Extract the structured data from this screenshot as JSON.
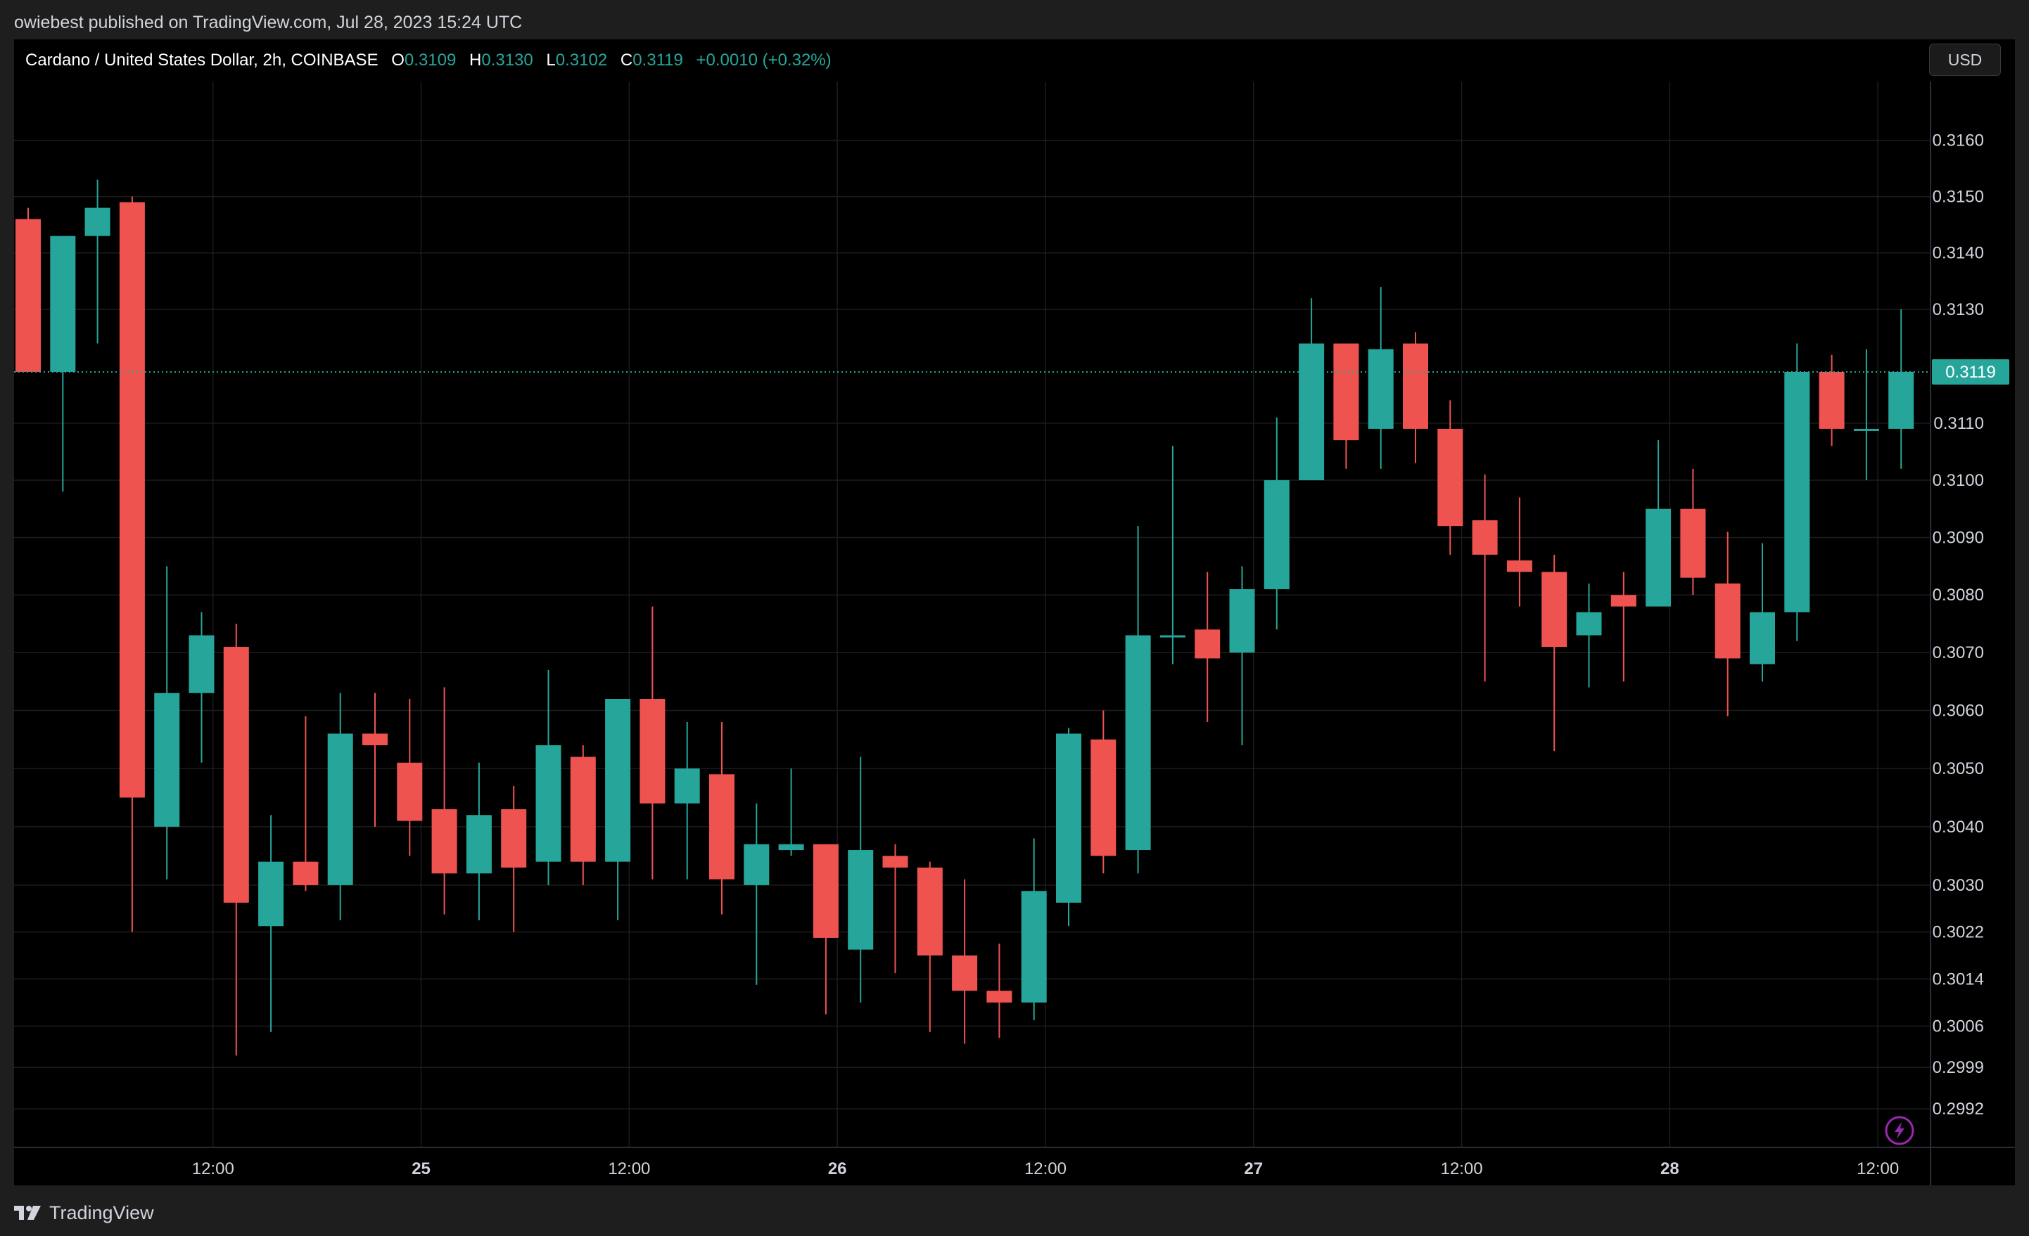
{
  "header": {
    "published_text": "owiebest published on TradingView.com, Jul 28, 2023 15:24 UTC"
  },
  "legend": {
    "symbol": "Cardano / United States Dollar, 2h, COINBASE",
    "o_label": "O",
    "o_value": "0.3109",
    "h_label": "H",
    "h_value": "0.3130",
    "l_label": "L",
    "l_value": "0.3102",
    "c_label": "C",
    "c_value": "0.3119",
    "change": "+0.0010 (+0.32%)"
  },
  "currency_button": "USD",
  "footer": {
    "brand": "TradingView"
  },
  "colors": {
    "up": "#26a69a",
    "down": "#ef5350",
    "background": "#000000",
    "grid": "#1c1c1c",
    "axis_text": "#d1d4dc"
  },
  "chart_data": {
    "type": "candlestick",
    "interval": "2h",
    "y_axis_ticks": [
      "0.3160",
      "0.3150",
      "0.3140",
      "0.3130",
      "0.3110",
      "0.3100",
      "0.3090",
      "0.3080",
      "0.3070",
      "0.3060",
      "0.3050",
      "0.3040",
      "0.3030",
      "0.3022",
      "0.3014",
      "0.3006",
      "0.2999",
      "0.2992"
    ],
    "y_scale": "log",
    "ylim": [
      0.29855,
      0.31705
    ],
    "x_axis_ticks": [
      {
        "label": "12:00",
        "index": 5.33,
        "bold": false
      },
      {
        "label": "25",
        "index": 11.33,
        "bold": true
      },
      {
        "label": "12:00",
        "index": 17.33,
        "bold": false
      },
      {
        "label": "26",
        "index": 23.33,
        "bold": true
      },
      {
        "label": "12:00",
        "index": 29.33,
        "bold": false
      },
      {
        "label": "27",
        "index": 35.33,
        "bold": true
      },
      {
        "label": "12:00",
        "index": 41.33,
        "bold": false
      },
      {
        "label": "28",
        "index": 47.33,
        "bold": true
      },
      {
        "label": "12:00",
        "index": 53.33,
        "bold": false
      }
    ],
    "last_price": "0.3119",
    "candles": [
      {
        "o": 0.3146,
        "h": 0.3148,
        "l": 0.3119,
        "c": 0.3119
      },
      {
        "o": 0.3119,
        "h": 0.3143,
        "l": 0.3098,
        "c": 0.3143
      },
      {
        "o": 0.3143,
        "h": 0.3153,
        "l": 0.3124,
        "c": 0.3148
      },
      {
        "o": 0.3149,
        "h": 0.315,
        "l": 0.3022,
        "c": 0.3045
      },
      {
        "o": 0.304,
        "h": 0.3085,
        "l": 0.3031,
        "c": 0.3063
      },
      {
        "o": 0.3063,
        "h": 0.3077,
        "l": 0.3051,
        "c": 0.3073
      },
      {
        "o": 0.3071,
        "h": 0.3075,
        "l": 0.3001,
        "c": 0.3027
      },
      {
        "o": 0.3023,
        "h": 0.3042,
        "l": 0.3005,
        "c": 0.3034
      },
      {
        "o": 0.3034,
        "h": 0.3059,
        "l": 0.3029,
        "c": 0.303
      },
      {
        "o": 0.303,
        "h": 0.3063,
        "l": 0.3024,
        "c": 0.3056
      },
      {
        "o": 0.3056,
        "h": 0.3063,
        "l": 0.304,
        "c": 0.3054
      },
      {
        "o": 0.3051,
        "h": 0.3062,
        "l": 0.3035,
        "c": 0.3041
      },
      {
        "o": 0.3043,
        "h": 0.3064,
        "l": 0.3025,
        "c": 0.3032
      },
      {
        "o": 0.3032,
        "h": 0.3051,
        "l": 0.3024,
        "c": 0.3042
      },
      {
        "o": 0.3043,
        "h": 0.3047,
        "l": 0.3022,
        "c": 0.3033
      },
      {
        "o": 0.3034,
        "h": 0.3067,
        "l": 0.303,
        "c": 0.3054
      },
      {
        "o": 0.3052,
        "h": 0.3054,
        "l": 0.303,
        "c": 0.3034
      },
      {
        "o": 0.3034,
        "h": 0.3062,
        "l": 0.3024,
        "c": 0.3062
      },
      {
        "o": 0.3062,
        "h": 0.3078,
        "l": 0.3031,
        "c": 0.3044
      },
      {
        "o": 0.3044,
        "h": 0.3058,
        "l": 0.3031,
        "c": 0.305
      },
      {
        "o": 0.3049,
        "h": 0.3058,
        "l": 0.3025,
        "c": 0.3031
      },
      {
        "o": 0.303,
        "h": 0.3044,
        "l": 0.3013,
        "c": 0.3037
      },
      {
        "o": 0.3036,
        "h": 0.305,
        "l": 0.3035,
        "c": 0.3037
      },
      {
        "o": 0.3037,
        "h": 0.3037,
        "l": 0.3008,
        "c": 0.3021
      },
      {
        "o": 0.3019,
        "h": 0.3052,
        "l": 0.301,
        "c": 0.3036
      },
      {
        "o": 0.3035,
        "h": 0.3037,
        "l": 0.3015,
        "c": 0.3033
      },
      {
        "o": 0.3033,
        "h": 0.3034,
        "l": 0.3005,
        "c": 0.3018
      },
      {
        "o": 0.3018,
        "h": 0.3031,
        "l": 0.3003,
        "c": 0.3012
      },
      {
        "o": 0.3012,
        "h": 0.302,
        "l": 0.3004,
        "c": 0.301
      },
      {
        "o": 0.301,
        "h": 0.3038,
        "l": 0.3007,
        "c": 0.3029
      },
      {
        "o": 0.3027,
        "h": 0.3057,
        "l": 0.3023,
        "c": 0.3056
      },
      {
        "o": 0.3055,
        "h": 0.306,
        "l": 0.3032,
        "c": 0.3035
      },
      {
        "o": 0.3036,
        "h": 0.3092,
        "l": 0.3032,
        "c": 0.3073
      },
      {
        "o": 0.3073,
        "h": 0.3106,
        "l": 0.3068,
        "c": 0.3073
      },
      {
        "o": 0.3074,
        "h": 0.3084,
        "l": 0.3058,
        "c": 0.3069
      },
      {
        "o": 0.307,
        "h": 0.3085,
        "l": 0.3054,
        "c": 0.3081
      },
      {
        "o": 0.3081,
        "h": 0.3111,
        "l": 0.3074,
        "c": 0.31
      },
      {
        "o": 0.31,
        "h": 0.3132,
        "l": 0.31,
        "c": 0.3124
      },
      {
        "o": 0.3124,
        "h": 0.3124,
        "l": 0.3102,
        "c": 0.3107
      },
      {
        "o": 0.3109,
        "h": 0.3134,
        "l": 0.3102,
        "c": 0.3123
      },
      {
        "o": 0.3124,
        "h": 0.3126,
        "l": 0.3103,
        "c": 0.3109
      },
      {
        "o": 0.3109,
        "h": 0.3114,
        "l": 0.3087,
        "c": 0.3092
      },
      {
        "o": 0.3093,
        "h": 0.3101,
        "l": 0.3065,
        "c": 0.3087
      },
      {
        "o": 0.3086,
        "h": 0.3097,
        "l": 0.3078,
        "c": 0.3084
      },
      {
        "o": 0.3084,
        "h": 0.3087,
        "l": 0.3053,
        "c": 0.3071
      },
      {
        "o": 0.3073,
        "h": 0.3082,
        "l": 0.3064,
        "c": 0.3077
      },
      {
        "o": 0.308,
        "h": 0.3084,
        "l": 0.3065,
        "c": 0.3078
      },
      {
        "o": 0.3078,
        "h": 0.3107,
        "l": 0.3078,
        "c": 0.3095
      },
      {
        "o": 0.3095,
        "h": 0.3102,
        "l": 0.308,
        "c": 0.3083
      },
      {
        "o": 0.3082,
        "h": 0.3091,
        "l": 0.3059,
        "c": 0.3069
      },
      {
        "o": 0.3068,
        "h": 0.3089,
        "l": 0.3065,
        "c": 0.3077
      },
      {
        "o": 0.3077,
        "h": 0.3124,
        "l": 0.3072,
        "c": 0.3119
      },
      {
        "o": 0.3119,
        "h": 0.3122,
        "l": 0.3106,
        "c": 0.3109
      },
      {
        "o": 0.3109,
        "h": 0.3123,
        "l": 0.31,
        "c": 0.3109
      },
      {
        "o": 0.3109,
        "h": 0.313,
        "l": 0.3102,
        "c": 0.3119
      }
    ]
  }
}
